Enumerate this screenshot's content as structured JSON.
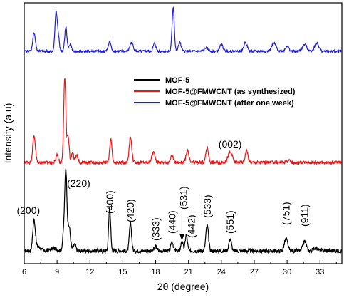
{
  "chart_data": {
    "type": "line",
    "xlabel": "2θ (degree)",
    "ylabel": "Intensity (a.u)",
    "xlim": [
      6,
      35
    ],
    "x_ticks": [
      "6",
      "9",
      "12",
      "15",
      "18",
      "21",
      "24",
      "27",
      "30",
      "33"
    ],
    "legend": {
      "placement": "center-right",
      "entries": [
        {
          "label": "MOF-5",
          "color": "#000000"
        },
        {
          "label": "MOF-5@FMWCNT (as synthesized)",
          "color": "#e31a1c"
        },
        {
          "label": "MOF-5@FMWCNT (after one week)",
          "color": "#1f1fd6"
        }
      ]
    },
    "series": [
      {
        "name": "MOF-5",
        "color": "#000000",
        "baseline": 0.0,
        "noise": 0.025,
        "peaks": [
          {
            "x": 6.9,
            "h": 0.38,
            "w": 0.12
          },
          {
            "x": 7.3,
            "h": 0.05,
            "w": 0.2
          },
          {
            "x": 8.7,
            "h": 0.03,
            "w": 0.3
          },
          {
            "x": 9.6,
            "h": 0.2,
            "w": 0.1
          },
          {
            "x": 9.8,
            "h": 1.0,
            "w": 0.1
          },
          {
            "x": 10.1,
            "h": 0.3,
            "w": 0.12
          },
          {
            "x": 10.6,
            "h": 0.08,
            "w": 0.12
          },
          {
            "x": 13.8,
            "h": 0.55,
            "w": 0.09
          },
          {
            "x": 15.7,
            "h": 0.35,
            "w": 0.1
          },
          {
            "x": 18.0,
            "h": 0.05,
            "w": 0.12
          },
          {
            "x": 19.5,
            "h": 0.12,
            "w": 0.1
          },
          {
            "x": 20.4,
            "h": 0.12,
            "w": 0.1
          },
          {
            "x": 20.8,
            "h": 0.2,
            "w": 0.1
          },
          {
            "x": 22.7,
            "h": 0.32,
            "w": 0.12
          },
          {
            "x": 24.8,
            "h": 0.15,
            "w": 0.12
          },
          {
            "x": 29.9,
            "h": 0.15,
            "w": 0.15
          },
          {
            "x": 31.6,
            "h": 0.12,
            "w": 0.15
          },
          {
            "x": 32.6,
            "h": 0.04,
            "w": 0.2
          }
        ]
      },
      {
        "name": "MOF-5@FMWCNT (as synthesized)",
        "color": "#e31a1c",
        "baseline": 0.0,
        "noise": 0.02,
        "peaks": [
          {
            "x": 6.9,
            "h": 0.32,
            "w": 0.12
          },
          {
            "x": 9.0,
            "h": 0.1,
            "w": 0.1
          },
          {
            "x": 9.7,
            "h": 1.0,
            "w": 0.1
          },
          {
            "x": 10.0,
            "h": 0.3,
            "w": 0.1
          },
          {
            "x": 10.4,
            "h": 0.12,
            "w": 0.1
          },
          {
            "x": 10.8,
            "h": 0.08,
            "w": 0.12
          },
          {
            "x": 13.9,
            "h": 0.28,
            "w": 0.1
          },
          {
            "x": 15.7,
            "h": 0.3,
            "w": 0.12
          },
          {
            "x": 17.8,
            "h": 0.12,
            "w": 0.15
          },
          {
            "x": 19.5,
            "h": 0.08,
            "w": 0.12
          },
          {
            "x": 20.9,
            "h": 0.14,
            "w": 0.12
          },
          {
            "x": 22.7,
            "h": 0.18,
            "w": 0.12
          },
          {
            "x": 24.8,
            "h": 0.12,
            "w": 0.2
          },
          {
            "x": 26.3,
            "h": 0.15,
            "w": 0.12
          },
          {
            "x": 30.1,
            "h": 0.02,
            "w": 0.2
          }
        ]
      },
      {
        "name": "MOF-5@FMWCNT (after one week)",
        "color": "#1f1fd6",
        "baseline": 0.0,
        "noise": 0.025,
        "peaks": [
          {
            "x": 6.9,
            "h": 0.42,
            "w": 0.12
          },
          {
            "x": 8.9,
            "h": 0.85,
            "w": 0.1
          },
          {
            "x": 9.1,
            "h": 0.35,
            "w": 0.1
          },
          {
            "x": 9.8,
            "h": 0.55,
            "w": 0.1
          },
          {
            "x": 10.2,
            "h": 0.15,
            "w": 0.12
          },
          {
            "x": 13.8,
            "h": 0.22,
            "w": 0.12
          },
          {
            "x": 15.8,
            "h": 0.2,
            "w": 0.15
          },
          {
            "x": 17.9,
            "h": 0.18,
            "w": 0.12
          },
          {
            "x": 19.6,
            "h": 1.0,
            "w": 0.1
          },
          {
            "x": 20.2,
            "h": 0.2,
            "w": 0.12
          },
          {
            "x": 22.6,
            "h": 0.08,
            "w": 0.15
          },
          {
            "x": 24.0,
            "h": 0.15,
            "w": 0.15
          },
          {
            "x": 26.2,
            "h": 0.2,
            "w": 0.15
          },
          {
            "x": 28.8,
            "h": 0.18,
            "w": 0.2
          },
          {
            "x": 30.0,
            "h": 0.12,
            "w": 0.15
          },
          {
            "x": 31.6,
            "h": 0.15,
            "w": 0.2
          },
          {
            "x": 32.7,
            "h": 0.18,
            "w": 0.2
          }
        ]
      }
    ],
    "annotations": [
      {
        "text": "(200)",
        "x": 6.9,
        "series": "MOF-5"
      },
      {
        "text": "(220)",
        "x": 9.8,
        "series": "MOF-5"
      },
      {
        "text": "(400)",
        "x": 13.8,
        "series": "MOF-5",
        "rotated": true
      },
      {
        "text": "(420)",
        "x": 15.7,
        "series": "MOF-5",
        "rotated": true
      },
      {
        "text": "(333)",
        "x": 18.0,
        "series": "MOF-5",
        "rotated": true
      },
      {
        "text": "(440)",
        "x": 19.5,
        "series": "MOF-5",
        "rotated": true
      },
      {
        "text": "(531)",
        "x": 20.4,
        "series": "MOF-5",
        "rotated": true,
        "arrow": true
      },
      {
        "text": "(442)",
        "x": 20.8,
        "series": "MOF-5",
        "rotated": true
      },
      {
        "text": "(533)",
        "x": 22.7,
        "series": "MOF-5",
        "rotated": true
      },
      {
        "text": "(551)",
        "x": 24.8,
        "series": "MOF-5",
        "rotated": true
      },
      {
        "text": "(751)",
        "x": 29.9,
        "series": "MOF-5",
        "rotated": true
      },
      {
        "text": "(911)",
        "x": 31.6,
        "series": "MOF-5",
        "rotated": true
      },
      {
        "text": "(002)",
        "x": 24.8,
        "series": "MOF-5@FMWCNT (as synthesized)"
      }
    ]
  }
}
